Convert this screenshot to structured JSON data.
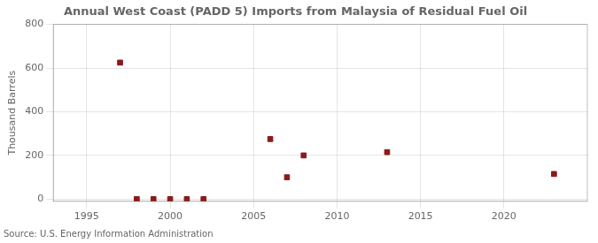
{
  "chart_data": {
    "type": "scatter",
    "title": "Annual West Coast (PADD 5) Imports from Malaysia of Residual Fuel Oil",
    "y_label": "Thousand Barrels",
    "annotations": [
      "Source: U.S. Energy Information Administration"
    ],
    "x": [
      1997,
      1998,
      1999,
      2000,
      2001,
      2002,
      2006,
      2007,
      2008,
      2013,
      2023
    ],
    "values": [
      625,
      0,
      0,
      0,
      0,
      0,
      275,
      100,
      200,
      215,
      115
    ],
    "color": "#8b1a1a",
    "marker": "square",
    "xlim": [
      1993,
      2025
    ],
    "xticks": [
      1995,
      2000,
      2005,
      2010,
      2015,
      2020
    ],
    "ylim": [
      -10,
      800
    ],
    "yticks": [
      0,
      200,
      400,
      600,
      800
    ],
    "grid": true
  }
}
